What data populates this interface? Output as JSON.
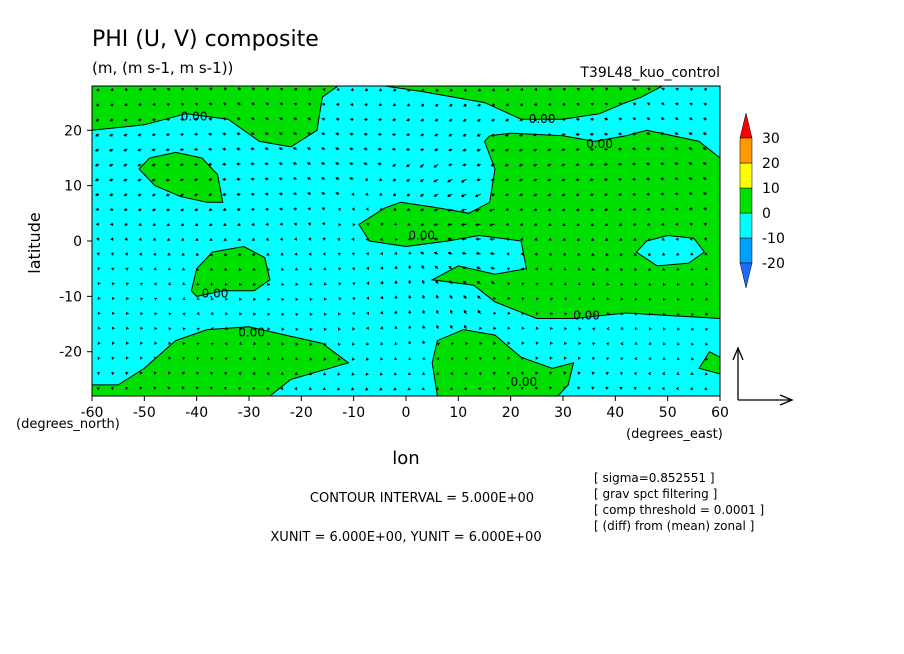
{
  "chart_data": {
    "type": "contour",
    "title": "PHI (U, V) composite",
    "subtitle": "(m, (m s-1, m s-1))",
    "dataset": "T39L48_kuo_control",
    "xlabel": "lon",
    "ylabel": "latitude",
    "x_unit_label": "(degrees_east)",
    "y_unit_label": "(degrees_north)",
    "xlim": [
      -60,
      60
    ],
    "ylim": [
      -28,
      28
    ],
    "x_ticks": [
      -60,
      -50,
      -40,
      -30,
      -20,
      -10,
      0,
      10,
      20,
      30,
      40,
      50,
      60
    ],
    "y_ticks": [
      -20,
      -10,
      0,
      10,
      20
    ],
    "colorbar": {
      "levels": [
        -20,
        -10,
        0,
        10,
        20,
        30
      ],
      "colors": [
        "#1f6bff",
        "#00a0ff",
        "#00ffff",
        "#00e000",
        "#ffff00",
        "#ff9900",
        "#ff0000"
      ]
    },
    "contour_labels": [
      {
        "text": "0.00",
        "x": -40.5,
        "y": 22.5
      },
      {
        "text": "0.00",
        "x": 26,
        "y": 22
      },
      {
        "text": "0.00",
        "x": 37,
        "y": 17.5
      },
      {
        "text": "0.00",
        "x": 3,
        "y": 1
      },
      {
        "text": "0.00",
        "x": -36.5,
        "y": -9.5
      },
      {
        "text": "0.00",
        "x": -29.5,
        "y": -16.5
      },
      {
        "text": "0.00",
        "x": 34.5,
        "y": -13.5
      },
      {
        "text": "0.00",
        "x": 22.5,
        "y": -25.5
      }
    ],
    "positive_regions": [
      [
        [
          -60,
          28
        ],
        [
          -13,
          28
        ],
        [
          -16,
          26
        ],
        [
          -17,
          20
        ],
        [
          -22,
          17
        ],
        [
          -28,
          18
        ],
        [
          -34,
          22
        ],
        [
          -42,
          23
        ],
        [
          -50,
          21
        ],
        [
          -60,
          20
        ]
      ],
      [
        [
          -4,
          28
        ],
        [
          49,
          28
        ],
        [
          45,
          26
        ],
        [
          42,
          25
        ],
        [
          37,
          23
        ],
        [
          30,
          22
        ],
        [
          22,
          22
        ],
        [
          15,
          25
        ],
        [
          3,
          27
        ]
      ],
      [
        [
          -9,
          3
        ],
        [
          -4,
          6
        ],
        [
          -1,
          7
        ],
        [
          6,
          6
        ],
        [
          12,
          5
        ],
        [
          16,
          7
        ],
        [
          17,
          13
        ],
        [
          15,
          18
        ],
        [
          16,
          19
        ],
        [
          20,
          19.5
        ],
        [
          30,
          19
        ],
        [
          36,
          18
        ],
        [
          42,
          19
        ],
        [
          46,
          20
        ],
        [
          51,
          19
        ],
        [
          56,
          18
        ],
        [
          60,
          15
        ],
        [
          60,
          -21
        ],
        [
          58,
          -20
        ],
        [
          56,
          -23
        ],
        [
          60,
          -24
        ],
        [
          60,
          -14
        ],
        [
          42,
          -13
        ],
        [
          32,
          -14
        ],
        [
          25,
          -14
        ],
        [
          17,
          -11
        ],
        [
          13,
          -8
        ],
        [
          5,
          -7
        ],
        [
          10,
          -4.5
        ],
        [
          17,
          -6
        ],
        [
          23,
          -5
        ],
        [
          22,
          0
        ],
        [
          14,
          1
        ],
        [
          8,
          0
        ],
        [
          0,
          -1
        ],
        [
          -7,
          0
        ]
      ],
      [
        [
          -51,
          13
        ],
        [
          -49,
          15
        ],
        [
          -44,
          16
        ],
        [
          -39,
          15
        ],
        [
          -36,
          12
        ],
        [
          -35,
          7
        ],
        [
          -38,
          7
        ],
        [
          -43,
          8
        ],
        [
          -48,
          10
        ]
      ],
      [
        [
          -41,
          -9
        ],
        [
          -40,
          -5
        ],
        [
          -37,
          -2
        ],
        [
          -31,
          -1
        ],
        [
          -27,
          -3
        ],
        [
          -26,
          -7
        ],
        [
          -29,
          -9
        ],
        [
          -35,
          -9
        ],
        [
          -40,
          -10
        ]
      ],
      [
        [
          -60,
          -28
        ],
        [
          -60,
          -26
        ],
        [
          -55,
          -26
        ],
        [
          -50,
          -23
        ],
        [
          -44,
          -18
        ],
        [
          -38,
          -16
        ],
        [
          -30,
          -15.5
        ],
        [
          -23,
          -17
        ],
        [
          -16,
          -18.5
        ],
        [
          -11,
          -22
        ],
        [
          -22,
          -25
        ],
        [
          -26,
          -28
        ]
      ],
      [
        [
          6,
          -28
        ],
        [
          5,
          -22
        ],
        [
          6,
          -18
        ],
        [
          11,
          -16
        ],
        [
          17,
          -17
        ],
        [
          22,
          -21
        ],
        [
          28,
          -23
        ],
        [
          32,
          -22
        ],
        [
          31,
          -26
        ],
        [
          29,
          -28
        ]
      ]
    ],
    "negative_holes": [
      [
        [
          44,
          -2
        ],
        [
          46,
          0
        ],
        [
          50,
          1
        ],
        [
          55,
          0.5
        ],
        [
          57,
          -2
        ],
        [
          54,
          -4
        ],
        [
          48,
          -4.5
        ]
      ]
    ],
    "vectors": {
      "spacing_deg": 2.7,
      "reference_vector": "6.000E+00"
    },
    "notes": [
      "[ sigma=0.852551 ]",
      "[ grav spct filtering ]",
      "[ comp threshold = 0.0001 ]",
      "[ (diff) from (mean) zonal ]"
    ],
    "contour_interval": "CONTOUR INTERVAL = 5.000E+00",
    "unit_vectors": "XUNIT = 6.000E+00, YUNIT = 6.000E+00"
  }
}
